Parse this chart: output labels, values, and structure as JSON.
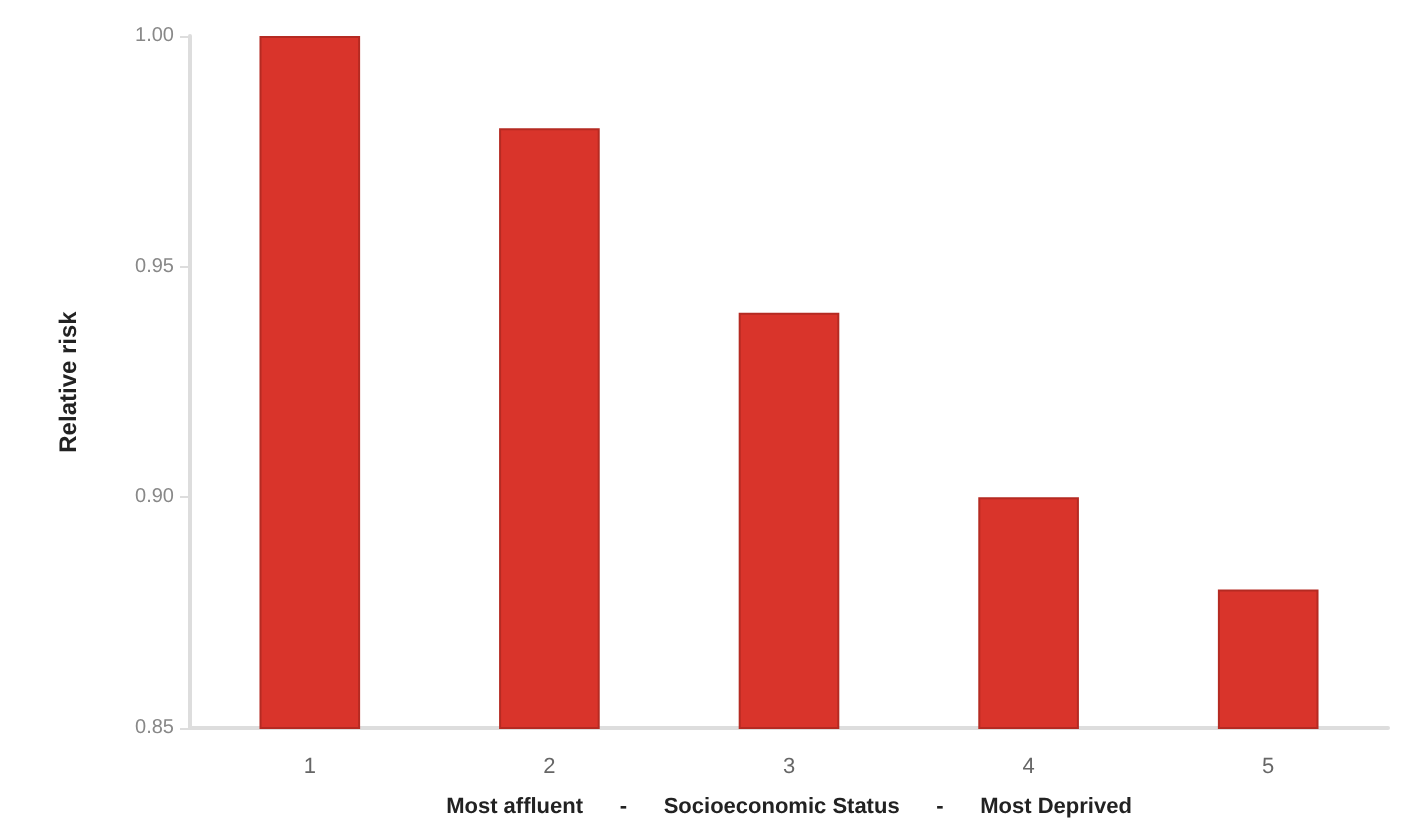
{
  "chart_data": {
    "type": "bar",
    "ylabel": "Relative risk",
    "xlabel": "Most affluent      -      Socioeconomic Status      -      Most Deprived",
    "categories": [
      "1",
      "2",
      "3",
      "4",
      "5"
    ],
    "values": [
      1.0,
      0.98,
      0.94,
      0.9,
      0.88
    ],
    "color": "#d9342b",
    "ylim": [
      0.85,
      1.0
    ],
    "yticks": [
      {
        "value": 0.85,
        "label": "0.85"
      },
      {
        "value": 0.9,
        "label": "0.90"
      },
      {
        "value": 0.95,
        "label": "0.95"
      },
      {
        "value": 1.0,
        "label": "1.00"
      }
    ],
    "grid": false
  }
}
